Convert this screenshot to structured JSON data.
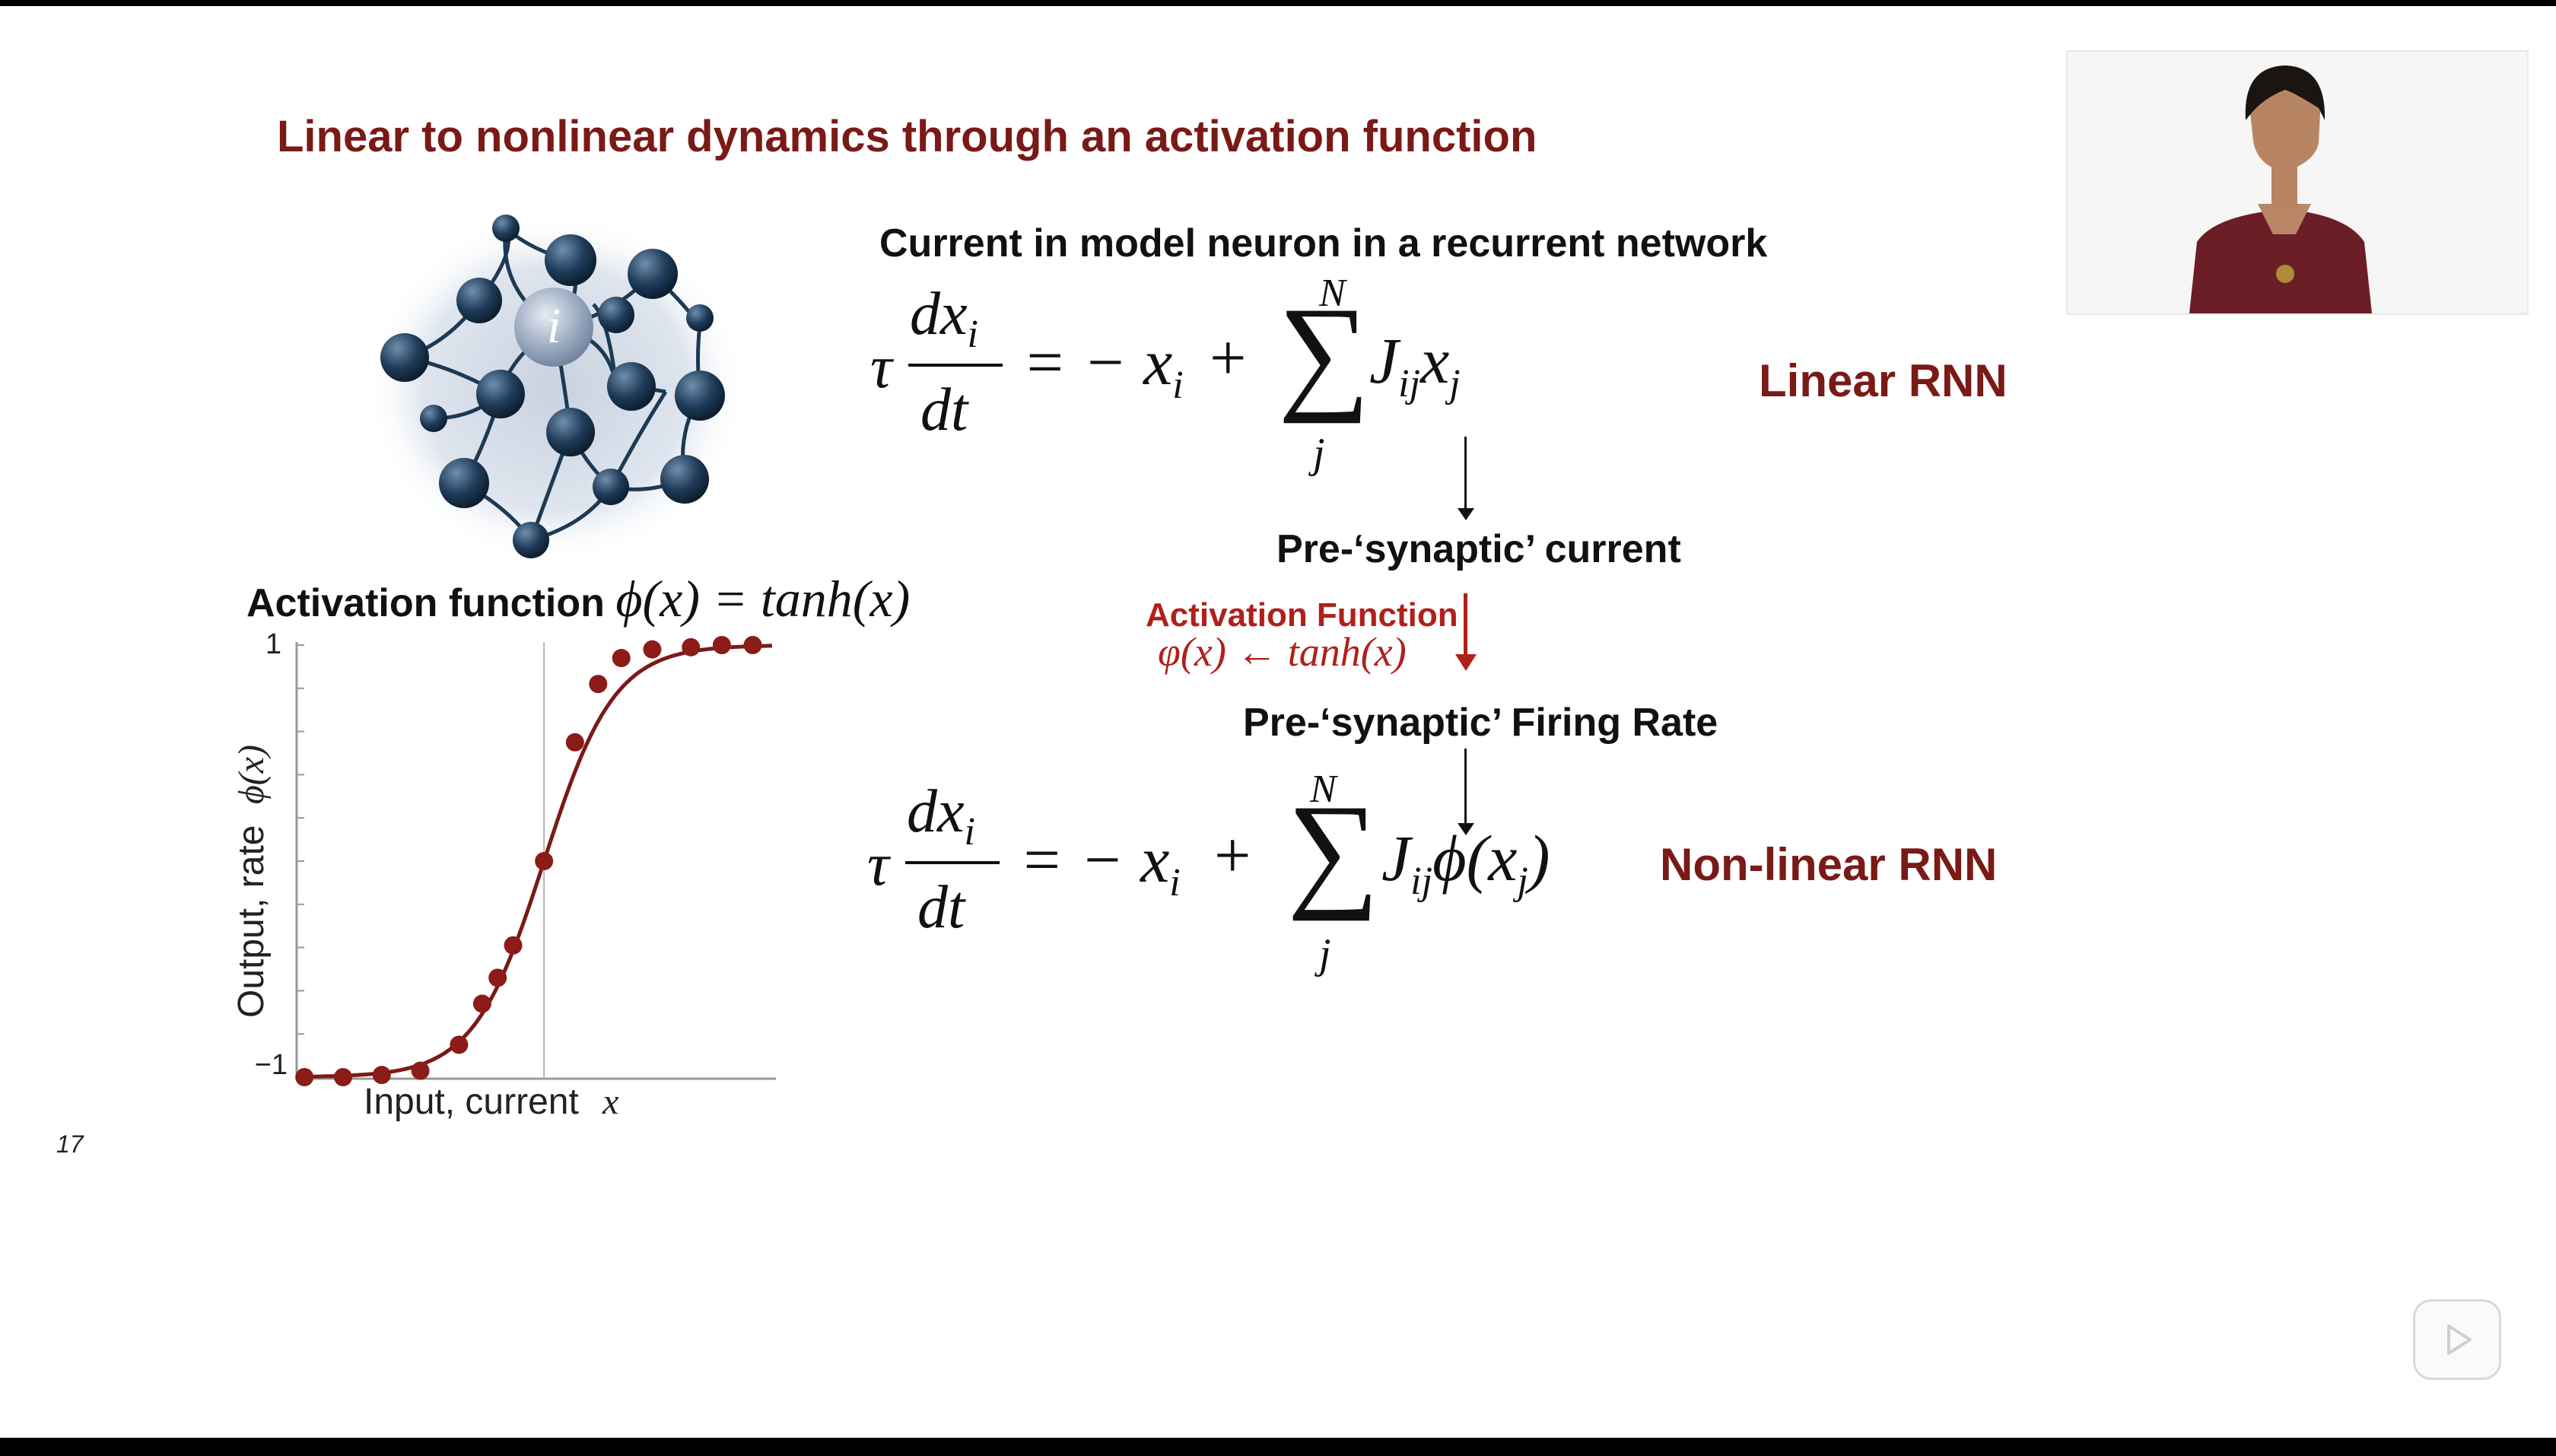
{
  "slide": {
    "title": "Linear to nonlinear dynamics through an activation function",
    "page_number": "17",
    "network_node_label": "i"
  },
  "top_section": {
    "heading": "Current in model neuron in a recurrent network",
    "linear_label": "Linear RNN",
    "presynaptic_current": "Pre-‘synaptic’ current",
    "activation_label": "Activation Function",
    "activation_assign": "φ(x) ← tanh(x)",
    "presynaptic_rate": "Pre-‘synaptic’ Firing Rate",
    "nonlinear_label": "Non-linear RNN"
  },
  "equations": {
    "tau": "τ",
    "numerator": "dx",
    "numerator_sub": "i",
    "denominator": "dt",
    "equals": "= − x",
    "x_sub": "i",
    "plus": "+",
    "sigma": "∑",
    "sum_top": "N",
    "sum_bottom": "j",
    "linear_term": "J",
    "linear_term_sub": "ij",
    "linear_term_x": "x",
    "linear_term_x_sub": "j",
    "nonlinear_term": "J",
    "nonlinear_term_sub": "ij",
    "nonlinear_term_phi": "ϕ(x",
    "nonlinear_term_x_sub": "j",
    "nonlinear_term_close": ")"
  },
  "activation_plot": {
    "label_prefix": "Activation function",
    "label_formula": "ϕ(x) = tanh(x)",
    "ylabel_text": "Output, rate",
    "ylabel_symbol": "ϕ(x)",
    "xlabel_text": "Input, current",
    "xlabel_symbol": "x",
    "ytick_top": "1",
    "ytick_bottom": "−1"
  },
  "chart_data": {
    "type": "line",
    "title": "Activation function ϕ(x) = tanh(x)",
    "xlabel": "Input, current x",
    "ylabel": "Output, rate ϕ(x)",
    "ylim": [
      -1,
      1
    ],
    "xlim": [
      -3.2,
      3.0
    ],
    "curve": "tanh",
    "points_x": [
      -3.1,
      -2.6,
      -2.1,
      -1.6,
      -1.1,
      -0.8,
      -0.6,
      -0.4,
      0.0,
      0.4,
      0.7,
      1.0,
      1.4,
      1.9,
      2.3,
      2.7
    ],
    "points_y": [
      -1.0,
      -1.0,
      -0.99,
      -0.97,
      -0.85,
      -0.66,
      -0.54,
      -0.39,
      0.0,
      0.55,
      0.82,
      0.94,
      0.98,
      0.99,
      1.0,
      1.0
    ],
    "colors": {
      "line": "#7a1a16",
      "markers": "#8b1c18",
      "axis": "#999999"
    }
  },
  "colors": {
    "accent": "#7a1a16",
    "text": "#111111",
    "background": "#ffffff"
  }
}
